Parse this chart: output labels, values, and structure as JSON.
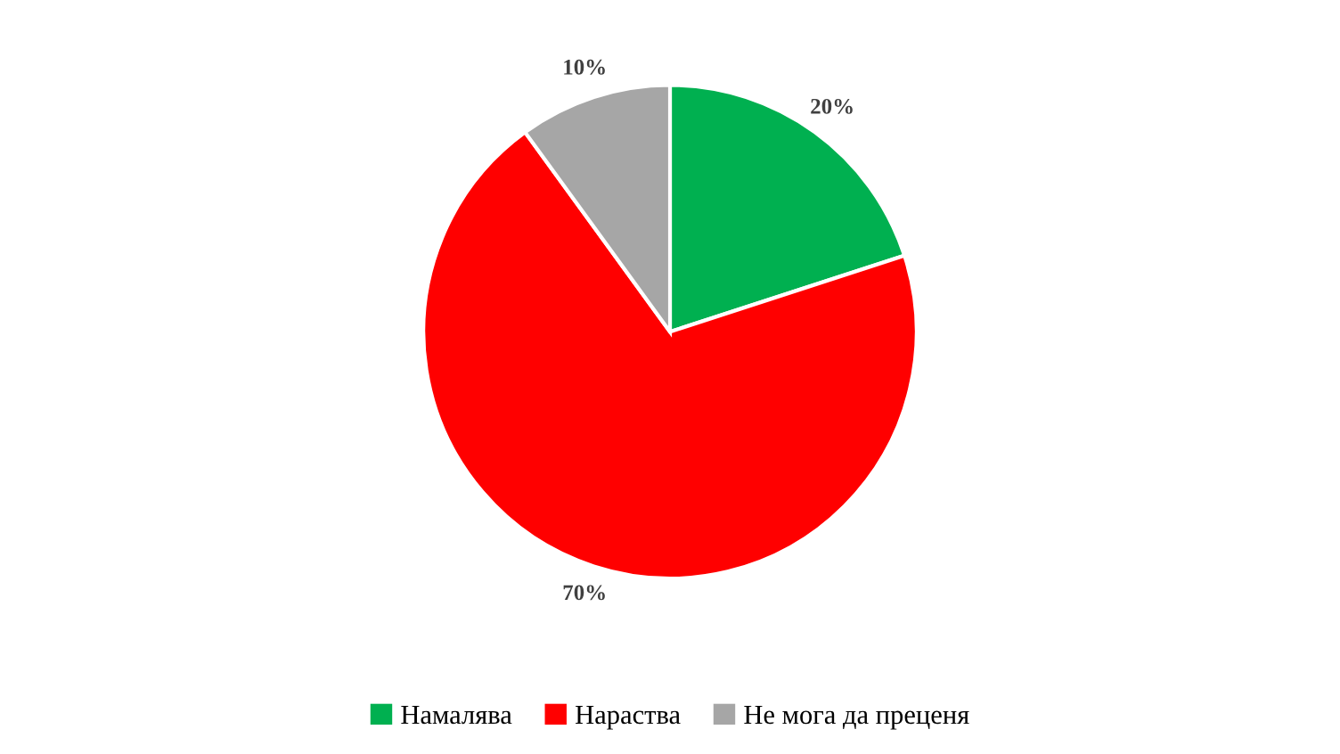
{
  "chart_data": {
    "type": "pie",
    "categories": [
      "Намалява",
      "Нараства",
      "Не мога да преценя"
    ],
    "values": [
      20,
      70,
      10
    ],
    "colors": [
      "#00b050",
      "#ff0000",
      "#a6a6a6"
    ],
    "value_labels": [
      "20%",
      "70%",
      "10%"
    ],
    "legend": "bottom"
  }
}
